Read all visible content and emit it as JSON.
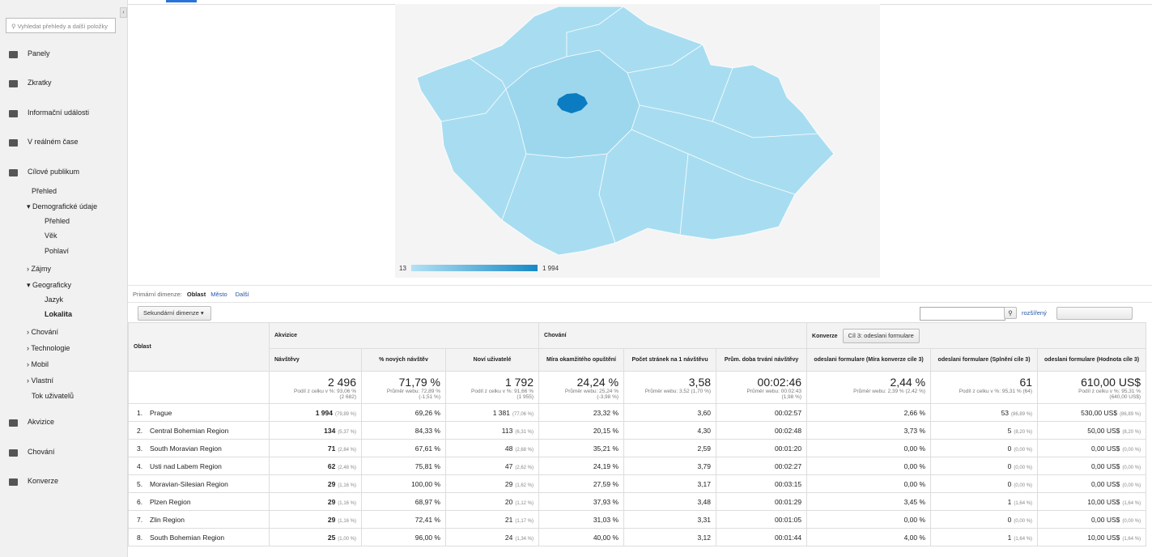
{
  "sidebar": {
    "search_placeholder": "Vyhledat přehledy a další položky",
    "items": [
      "Panely",
      "Zkratky",
      "Informační události",
      "V reálném čase",
      "Cílové publikum",
      "Přehled",
      "Demografické údaje",
      "Přehled",
      "Věk",
      "Pohlaví",
      "Zájmy",
      "Geograficky",
      "Jazyk",
      "Lokalita",
      "Chování",
      "Technologie",
      "Mobil",
      "Vlastní",
      "Tok uživatelů",
      "Akvizice",
      "Chování",
      "Konverze"
    ]
  },
  "map": {
    "legend_min": "13",
    "legend_max": "1 994"
  },
  "dimension_bar": {
    "label": "Primární dimenze:",
    "active": "Oblast",
    "options": [
      "Město",
      "Další"
    ]
  },
  "toolbar": {
    "secondary": "Sekundární dimenze",
    "advanced": "rozšířený"
  },
  "table": {
    "dimension_header": "Oblast",
    "groups": [
      "Akvizice",
      "Chování",
      "Konverze"
    ],
    "goal_select": "Cíl 3: odeslani formulare",
    "columns": [
      "Návštěvy",
      "% nových návštěv",
      "Noví uživatelé",
      "Míra okamžitého opuštění",
      "Počet stránek na 1 návštěvu",
      "Prům. doba trvání návštěvy",
      "odeslani formulare (Míra konverze cíle 3)",
      "odeslani formulare (Splnění cíle 3)",
      "odeslani formulare (Hodnota cíle 3)"
    ],
    "totals": [
      {
        "value": "2 496",
        "sub": [
          "Podíl z celku v %: 93,06 %",
          "(2 682)"
        ]
      },
      {
        "value": "71,79 %",
        "sub": [
          "Průměr webu: 72,89 %",
          "(-1,51 %)"
        ]
      },
      {
        "value": "1 792",
        "sub": [
          "Podíl z celku v %: 91,66 %",
          "(1 955)"
        ]
      },
      {
        "value": "24,24 %",
        "sub": [
          "Průměr webu: 25,24 %",
          "(-3,98 %)"
        ]
      },
      {
        "value": "3,58",
        "sub": [
          "Průměr webu: 3,52 (1,70 %)"
        ]
      },
      {
        "value": "00:02:46",
        "sub": [
          "Průměr webu: 00:02:43",
          "(1,98 %)"
        ]
      },
      {
        "value": "2,44 %",
        "sub": [
          "Průměr webu: 2,39 % (2,42 %)"
        ]
      },
      {
        "value": "61",
        "sub": [
          "Podíl z celku v %: 95,31 % (64)"
        ]
      },
      {
        "value": "610,00 US$",
        "sub": [
          "Podíl z celku v %: 95,31 %",
          "(640,00 US$)"
        ]
      }
    ],
    "rows": [
      [
        "1.",
        "Prague",
        "1 994",
        "(79,89 %)",
        "69,26 %",
        "1 381",
        "(77,06 %)",
        "23,32 %",
        "3,60",
        "00:02:57",
        "2,66 %",
        "53",
        "(86,89 %)",
        "530,00 US$",
        "(86,89 %)"
      ],
      [
        "2.",
        "Central Bohemian Region",
        "134",
        "(5,37 %)",
        "84,33 %",
        "113",
        "(6,31 %)",
        "20,15 %",
        "4,30",
        "00:02:48",
        "3,73 %",
        "5",
        "(8,20 %)",
        "50,00 US$",
        "(8,20 %)"
      ],
      [
        "3.",
        "South Moravian Region",
        "71",
        "(2,84 %)",
        "67,61 %",
        "48",
        "(2,68 %)",
        "35,21 %",
        "2,59",
        "00:01:20",
        "0,00 %",
        "0",
        "(0,00 %)",
        "0,00 US$",
        "(0,00 %)"
      ],
      [
        "4.",
        "Usti nad Labem Region",
        "62",
        "(2,48 %)",
        "75,81 %",
        "47",
        "(2,62 %)",
        "24,19 %",
        "3,79",
        "00:02:27",
        "0,00 %",
        "0",
        "(0,00 %)",
        "0,00 US$",
        "(0,00 %)"
      ],
      [
        "5.",
        "Moravian-Silesian Region",
        "29",
        "(1,16 %)",
        "100,00 %",
        "29",
        "(1,62 %)",
        "27,59 %",
        "3,17",
        "00:03:15",
        "0,00 %",
        "0",
        "(0,00 %)",
        "0,00 US$",
        "(0,00 %)"
      ],
      [
        "6.",
        "Plzen Region",
        "29",
        "(1,16 %)",
        "68,97 %",
        "20",
        "(1,12 %)",
        "37,93 %",
        "3,48",
        "00:01:29",
        "3,45 %",
        "1",
        "(1,64 %)",
        "10,00 US$",
        "(1,64 %)"
      ],
      [
        "7.",
        "Zlin Region",
        "29",
        "(1,16 %)",
        "72,41 %",
        "21",
        "(1,17 %)",
        "31,03 %",
        "3,31",
        "00:01:05",
        "0,00 %",
        "0",
        "(0,00 %)",
        "0,00 US$",
        "(0,00 %)"
      ],
      [
        "8.",
        "South Bohemian Region",
        "25",
        "(1,00 %)",
        "96,00 %",
        "24",
        "(1,34 %)",
        "40,00 %",
        "3,12",
        "00:01:44",
        "4,00 %",
        "1",
        "(1,64 %)",
        "10,00 US$",
        "(1,64 %)"
      ]
    ]
  }
}
